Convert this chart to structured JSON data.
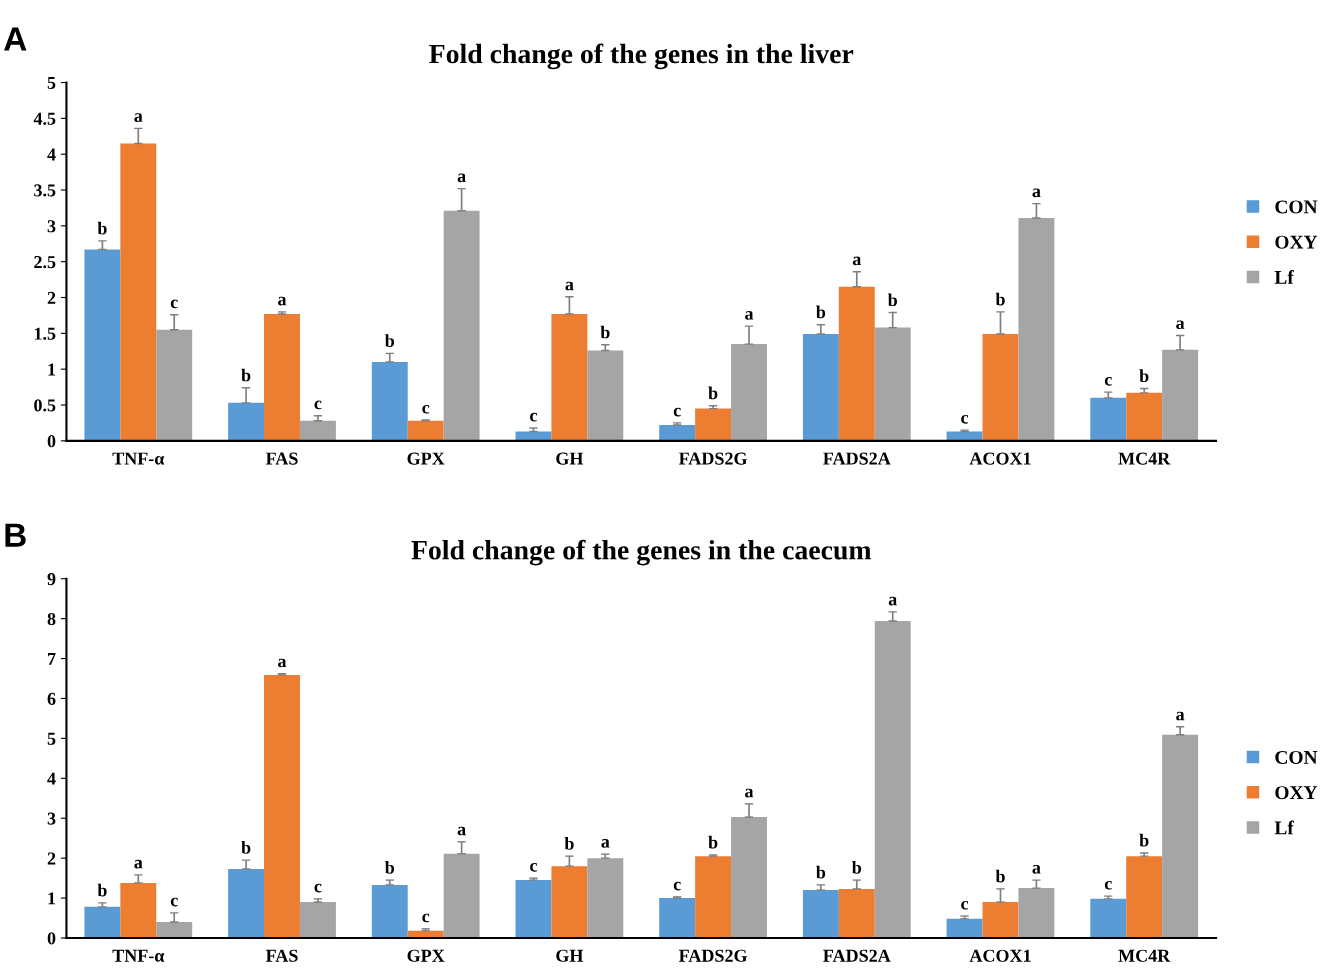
{
  "chart_data": [
    {
      "type": "bar",
      "title": "Fold change of the genes in the liver",
      "annotations": [
        "A"
      ],
      "categories": [
        "TNF-α",
        "FAS",
        "GPX",
        "GH",
        "FADS2G",
        "FADS2A",
        "ACOX1",
        "MC4R"
      ],
      "ylim": [
        0,
        5
      ],
      "yticks": [
        0,
        0.5,
        1,
        1.5,
        2,
        2.5,
        3,
        3.5,
        4,
        4.5,
        5
      ],
      "grid": false,
      "legend": "right",
      "series": [
        {
          "name": "CON",
          "color": "#5b9bd5",
          "values": [
            2.67,
            0.53,
            1.1,
            0.13,
            0.22,
            1.49,
            0.13,
            0.6
          ],
          "errors": [
            [
              2.67,
              2.79
            ],
            [
              0.53,
              0.74
            ],
            [
              1.1,
              1.22
            ],
            [
              0.13,
              0.18
            ],
            [
              0.22,
              0.25
            ],
            [
              1.49,
              1.62
            ],
            [
              0.13,
              0.15
            ],
            [
              0.6,
              0.68
            ]
          ],
          "value_labels": [
            "b",
            "b",
            "b",
            "c",
            "c",
            "b",
            "c",
            "c"
          ]
        },
        {
          "name": "OXY",
          "color": "#ed7d31",
          "values": [
            4.15,
            1.77,
            0.28,
            1.77,
            0.45,
            2.15,
            1.49,
            0.67
          ],
          "errors": [
            [
              4.15,
              4.36
            ],
            [
              1.77,
              1.8
            ],
            [
              0.28,
              0.29
            ],
            [
              1.77,
              2.01
            ],
            [
              0.45,
              0.49
            ],
            [
              2.15,
              2.36
            ],
            [
              1.49,
              1.8
            ],
            [
              0.67,
              0.73
            ]
          ],
          "value_labels": [
            "a",
            "a",
            "c",
            "a",
            "b",
            "a",
            "b",
            "b"
          ]
        },
        {
          "name": "Lf",
          "color": "#a5a5a5",
          "values": [
            1.55,
            0.28,
            3.21,
            1.26,
            1.35,
            1.58,
            3.11,
            1.27
          ],
          "errors": [
            [
              1.55,
              1.76
            ],
            [
              0.28,
              0.35
            ],
            [
              3.21,
              3.52
            ],
            [
              1.26,
              1.34
            ],
            [
              1.35,
              1.6
            ],
            [
              1.58,
              1.79
            ],
            [
              3.11,
              3.31
            ],
            [
              1.27,
              1.47
            ]
          ],
          "value_labels": [
            "c",
            "c",
            "a",
            "b",
            "a",
            "b",
            "a",
            "a"
          ]
        }
      ]
    },
    {
      "type": "bar",
      "title": "Fold change of the genes in the caecum",
      "annotations": [
        "B"
      ],
      "categories": [
        "TNF-α",
        "FAS",
        "GPX",
        "GH",
        "FADS2G",
        "FADS2A",
        "ACOX1",
        "MC4R"
      ],
      "ylim": [
        0,
        9
      ],
      "yticks": [
        0,
        1,
        2,
        3,
        4,
        5,
        6,
        7,
        8,
        9
      ],
      "grid": false,
      "legend": "right",
      "series": [
        {
          "name": "CON",
          "color": "#5b9bd5",
          "values": [
            0.78,
            1.73,
            1.33,
            1.45,
            1.0,
            1.2,
            0.48,
            0.98
          ],
          "errors": [
            [
              0.78,
              0.88
            ],
            [
              1.73,
              1.95
            ],
            [
              1.33,
              1.45
            ],
            [
              1.45,
              1.5
            ],
            [
              1.0,
              1.03
            ],
            [
              1.2,
              1.33
            ],
            [
              0.48,
              0.55
            ],
            [
              0.98,
              1.05
            ]
          ],
          "value_labels": [
            "b",
            "b",
            "b",
            "c",
            "c",
            "b",
            "c",
            "c"
          ]
        },
        {
          "name": "OXY",
          "color": "#ed7d31",
          "values": [
            1.38,
            6.59,
            0.18,
            1.8,
            2.05,
            1.23,
            0.9,
            2.05
          ],
          "errors": [
            [
              1.38,
              1.58
            ],
            [
              6.59,
              6.62
            ],
            [
              0.18,
              0.23
            ],
            [
              1.8,
              2.05
            ],
            [
              2.05,
              2.08
            ],
            [
              1.23,
              1.45
            ],
            [
              0.9,
              1.23
            ],
            [
              2.05,
              2.13
            ]
          ],
          "value_labels": [
            "a",
            "a",
            "c",
            "b",
            "b",
            "b",
            "b",
            "b"
          ]
        },
        {
          "name": "Lf",
          "color": "#a5a5a5",
          "values": [
            0.4,
            0.9,
            2.11,
            2.0,
            3.03,
            7.94,
            1.25,
            5.09
          ],
          "errors": [
            [
              0.4,
              0.63
            ],
            [
              0.9,
              0.98
            ],
            [
              2.11,
              2.41
            ],
            [
              2.0,
              2.1
            ],
            [
              3.03,
              3.36
            ],
            [
              7.94,
              8.17
            ],
            [
              1.25,
              1.45
            ],
            [
              5.09,
              5.29
            ]
          ],
          "value_labels": [
            "c",
            "c",
            "a",
            "a",
            "a",
            "a",
            "a",
            "a"
          ]
        }
      ]
    }
  ]
}
